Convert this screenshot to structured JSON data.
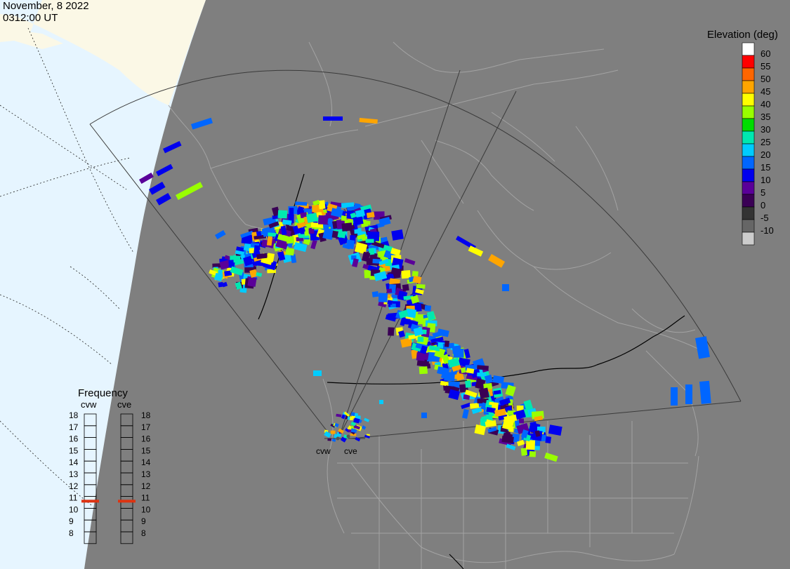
{
  "header": {
    "date": "November, 8 2022",
    "time": "0312:00 UT"
  },
  "map": {
    "colors": {
      "ocean_day": "#e6f5ff",
      "land_day": "#fbf8e6",
      "night": "#7f7f7f",
      "coast": "#a3a3a3",
      "fov_line": "#3a3a3a"
    },
    "radar_sites": [
      "cvw",
      "cve"
    ]
  },
  "elevation_scale": {
    "title": "Elevation (deg)",
    "levels": [
      {
        "label": "60",
        "color": "#ffffff"
      },
      {
        "label": "55",
        "color": "#ff0000"
      },
      {
        "label": "50",
        "color": "#ff6600"
      },
      {
        "label": "45",
        "color": "#ffa500"
      },
      {
        "label": "40",
        "color": "#ffff00"
      },
      {
        "label": "35",
        "color": "#99ff00"
      },
      {
        "label": "30",
        "color": "#00dd00"
      },
      {
        "label": "25",
        "color": "#00e8b0"
      },
      {
        "label": "20",
        "color": "#00ccff"
      },
      {
        "label": "15",
        "color": "#0066ff"
      },
      {
        "label": "10",
        "color": "#0000ee"
      },
      {
        "label": "5",
        "color": "#5a0099"
      },
      {
        "label": "0",
        "color": "#3a0055"
      },
      {
        "label": "-5",
        "color": "#333333"
      },
      {
        "label": "-10",
        "color": "#666666"
      },
      {
        "label": "",
        "color": "#cccccc"
      }
    ]
  },
  "frequency": {
    "title": "Frequency",
    "radars": [
      {
        "name": "cvw",
        "selected_mhz": 10.6
      },
      {
        "name": "cve",
        "selected_mhz": 10.6
      }
    ],
    "ticks": [
      "18",
      "17",
      "16",
      "15",
      "14",
      "13",
      "12",
      "11",
      "10",
      "9",
      "8"
    ],
    "marker_color": "#dd3311"
  }
}
